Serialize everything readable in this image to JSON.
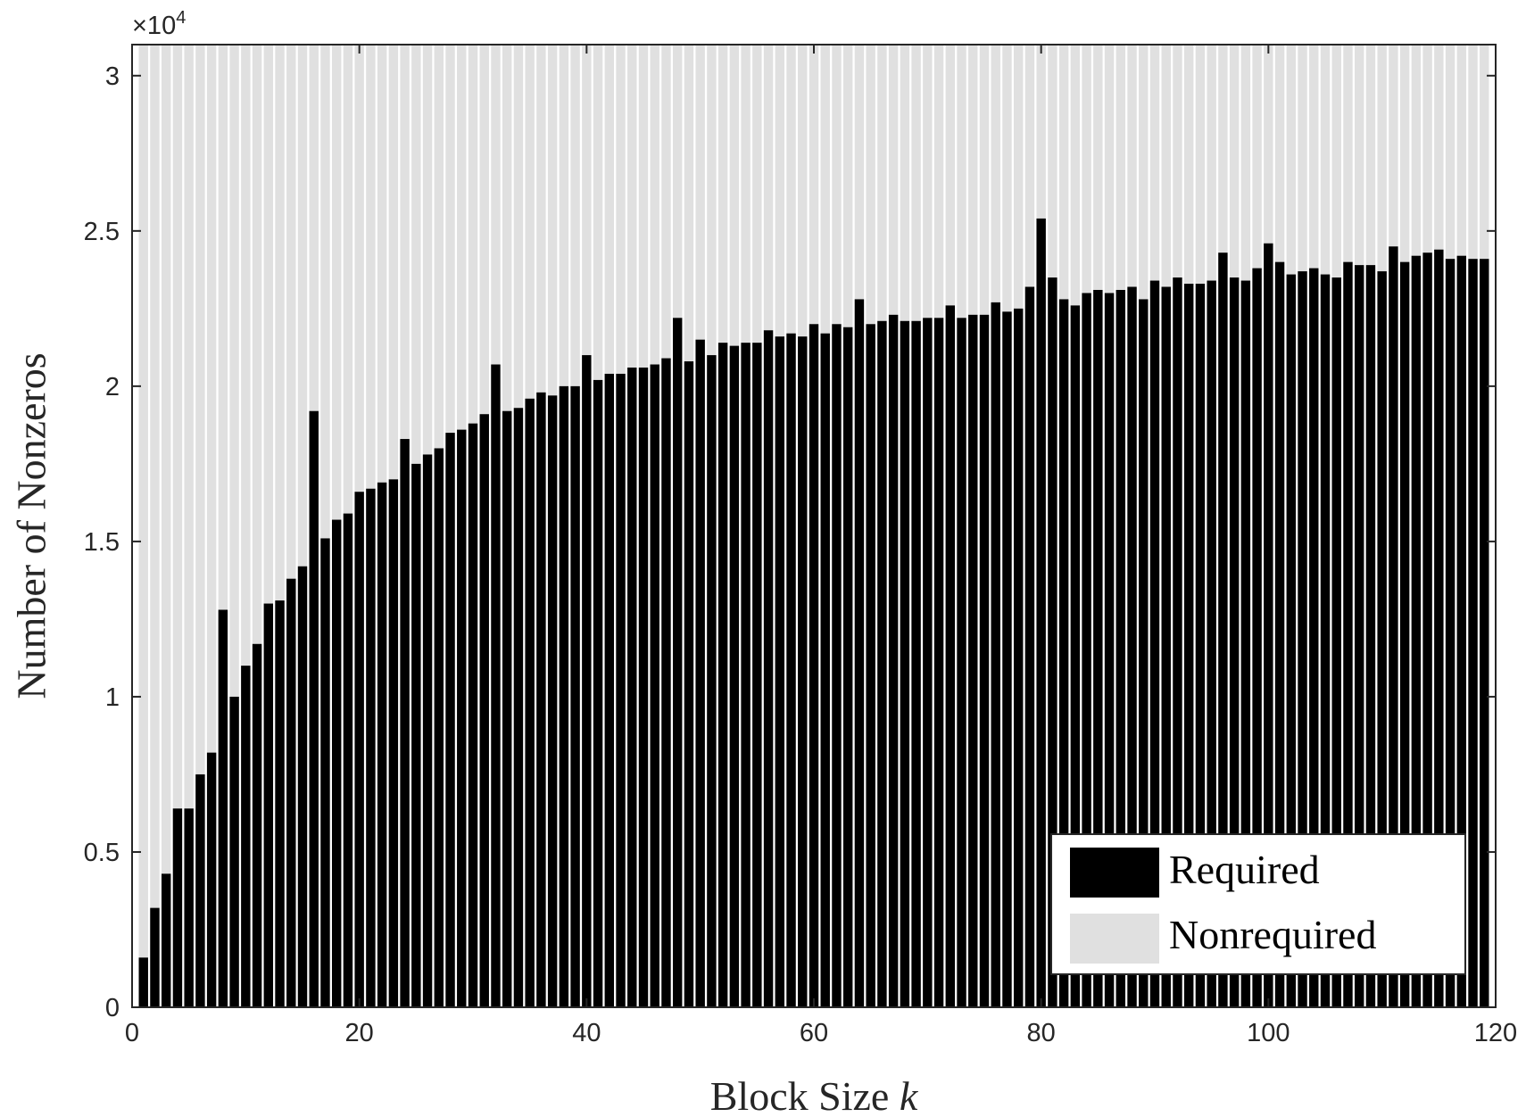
{
  "colors": {
    "required": "#000000",
    "nonrequired": "#e0e0e0",
    "axis": "#262626",
    "background": "#ffffff"
  },
  "chart_data": {
    "type": "bar",
    "stacked": true,
    "xlabel_text": "Block Size",
    "xlabel_var": "k",
    "ylabel": "Number of Nonzeros",
    "y_exponent_prefix": "×10",
    "y_exponent_power": "4",
    "xlim": [
      0,
      120
    ],
    "ylim": [
      0,
      3.1
    ],
    "x_ticks": [
      0,
      20,
      40,
      60,
      80,
      100,
      120
    ],
    "x_tick_labels": [
      "0",
      "20",
      "40",
      "60",
      "80",
      "100",
      "120"
    ],
    "y_ticks": [
      0,
      0.5,
      1,
      1.5,
      2,
      2.5,
      3
    ],
    "y_tick_labels": [
      "0",
      "0.5",
      "1",
      "1.5",
      "2",
      "2.5",
      "3"
    ],
    "grid": false,
    "legend_position": "bottom-right",
    "x": [
      1,
      2,
      3,
      4,
      5,
      6,
      7,
      8,
      9,
      10,
      11,
      12,
      13,
      14,
      15,
      16,
      17,
      18,
      19,
      20,
      21,
      22,
      23,
      24,
      25,
      26,
      27,
      28,
      29,
      30,
      31,
      32,
      33,
      34,
      35,
      36,
      37,
      38,
      39,
      40,
      41,
      42,
      43,
      44,
      45,
      46,
      47,
      48,
      49,
      50,
      51,
      52,
      53,
      54,
      55,
      56,
      57,
      58,
      59,
      60,
      61,
      62,
      63,
      64,
      65,
      66,
      67,
      68,
      69,
      70,
      71,
      72,
      73,
      74,
      75,
      76,
      77,
      78,
      79,
      80,
      81,
      82,
      83,
      84,
      85,
      86,
      87,
      88,
      89,
      90,
      91,
      92,
      93,
      94,
      95,
      96,
      97,
      98,
      99,
      100,
      101,
      102,
      103,
      104,
      105,
      106,
      107,
      108,
      109,
      110,
      111,
      112,
      113,
      114,
      115,
      116,
      117,
      118,
      119
    ],
    "series": [
      {
        "name": "Required",
        "values": [
          0.16,
          0.32,
          0.43,
          0.64,
          0.64,
          0.75,
          0.82,
          1.28,
          1.0,
          1.1,
          1.17,
          1.3,
          1.31,
          1.38,
          1.42,
          1.92,
          1.51,
          1.57,
          1.59,
          1.66,
          1.67,
          1.69,
          1.7,
          1.83,
          1.75,
          1.78,
          1.8,
          1.85,
          1.86,
          1.88,
          1.91,
          2.07,
          1.92,
          1.93,
          1.96,
          1.98,
          1.97,
          2.0,
          2.0,
          2.1,
          2.02,
          2.04,
          2.04,
          2.06,
          2.06,
          2.07,
          2.09,
          2.22,
          2.08,
          2.15,
          2.1,
          2.14,
          2.13,
          2.14,
          2.14,
          2.18,
          2.16,
          2.17,
          2.16,
          2.2,
          2.17,
          2.2,
          2.19,
          2.28,
          2.2,
          2.21,
          2.23,
          2.21,
          2.21,
          2.22,
          2.22,
          2.26,
          2.22,
          2.23,
          2.23,
          2.27,
          2.24,
          2.25,
          2.32,
          2.54,
          2.35,
          2.28,
          2.26,
          2.3,
          2.31,
          2.3,
          2.31,
          2.32,
          2.28,
          2.34,
          2.32,
          2.35,
          2.33,
          2.33,
          2.34,
          2.43,
          2.35,
          2.34,
          2.38,
          2.46,
          2.4,
          2.36,
          2.37,
          2.38,
          2.36,
          2.35,
          2.4,
          2.39,
          2.39,
          2.37,
          2.45,
          2.4,
          2.42,
          2.43,
          2.44,
          2.41,
          2.42,
          2.41,
          2.41
        ]
      },
      {
        "name": "Nonrequired",
        "fills_to": 3.1
      }
    ]
  }
}
